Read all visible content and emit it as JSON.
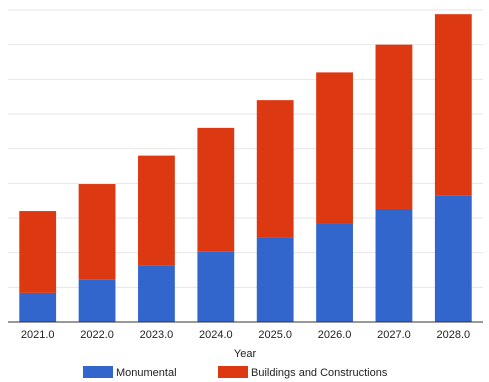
{
  "chart_data": {
    "type": "bar",
    "stacked": true,
    "categories": [
      "2021.0",
      "2022.0",
      "2023.0",
      "2024.0",
      "2025.0",
      "2026.0",
      "2027.0",
      "2028.0"
    ],
    "series": [
      {
        "name": "Monumental",
        "color": "#3366cc",
        "values": [
          4.2,
          6.1,
          8.1,
          10.2,
          12.2,
          14.2,
          16.3,
          18.2
        ]
      },
      {
        "name": "Buildings and Constructions",
        "color": "#dc3912",
        "values": [
          11.8,
          13.8,
          15.9,
          17.8,
          19.8,
          21.8,
          23.7,
          26.2
        ]
      }
    ],
    "xlabel": "Year",
    "ylabel": "",
    "ylim": [
      0,
      45
    ],
    "grid": true,
    "legend_position": "bottom"
  }
}
